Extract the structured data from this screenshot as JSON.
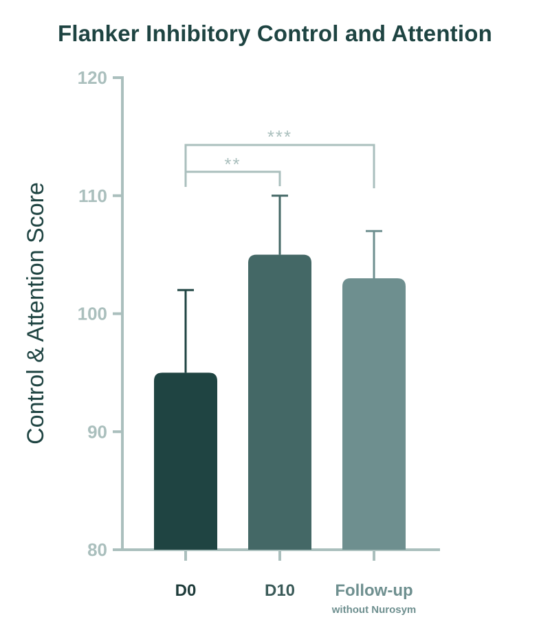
{
  "chart_data": {
    "type": "bar",
    "title": "Flanker Inhibitory Control and Attention",
    "xlabel": "",
    "ylabel": "Control & Attention Score",
    "ylim": [
      80,
      120
    ],
    "yticks": [
      80,
      90,
      100,
      110,
      120
    ],
    "categories": [
      "D0",
      "D10",
      "Follow-up"
    ],
    "category_sublabels": [
      "",
      "",
      "without Nurosym"
    ],
    "values": [
      95,
      105,
      103
    ],
    "error_upper": [
      102,
      110,
      107
    ],
    "bar_colors": [
      "#1f4442",
      "#446866",
      "#6e8f8f"
    ],
    "label_colors": [
      "#1e3b3a",
      "#3a5a58",
      "#6e8f8f"
    ],
    "axis_color": "#aabfbd",
    "significance": [
      {
        "from": 0,
        "to": 1,
        "label": "**"
      },
      {
        "from": 0,
        "to": 2,
        "label": "***"
      }
    ],
    "grid": false,
    "legend": "none"
  }
}
